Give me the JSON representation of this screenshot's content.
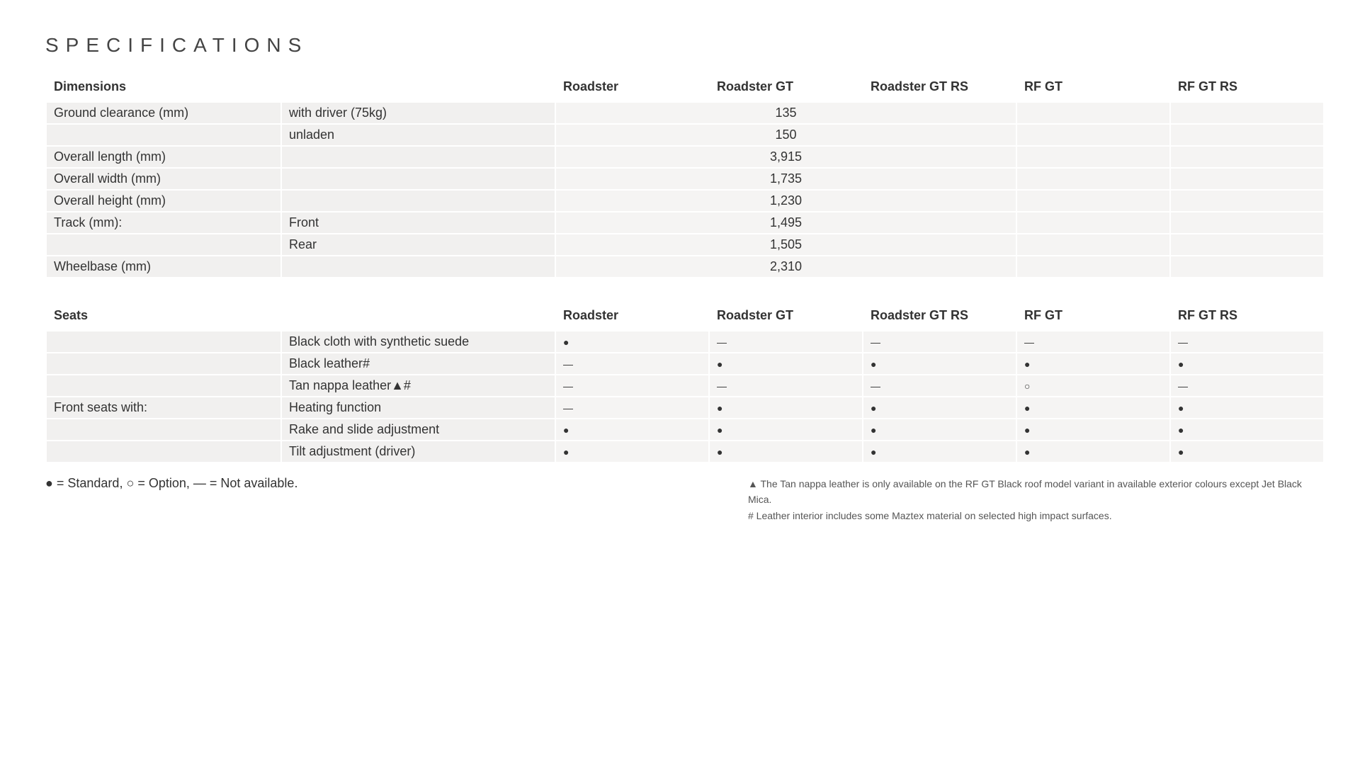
{
  "title": "SPECIFICATIONS",
  "columns": [
    "Roadster",
    "Roadster GT",
    "Roadster GT RS",
    "RF GT",
    "RF GT RS"
  ],
  "symbols": {
    "standard": "●",
    "option": "○",
    "na": "—"
  },
  "legend": "● = Standard,  ○ = Option, — = Not available.",
  "footnotes": [
    "▲ The Tan nappa leather is only available on the RF GT Black roof model variant in available exterior colours except Jet Black Mica.",
    "# Leather interior includes some Maztex material on selected high impact surfaces."
  ],
  "colors": {
    "row_bg_label": "#f1f0ef",
    "row_bg_value": "#f5f4f3",
    "page_bg": "#ffffff",
    "text": "#333333",
    "title": "#444444"
  },
  "dimensions_section": {
    "header": "Dimensions",
    "rows": [
      {
        "label": "Ground clearance (mm)",
        "sub": "with driver (75kg)",
        "span3": "135",
        "rfgt": "",
        "rfgtrs": ""
      },
      {
        "label": "",
        "sub": "unladen",
        "span3": "150",
        "rfgt": "",
        "rfgtrs": ""
      },
      {
        "label": "Overall length (mm)",
        "sub": "",
        "span3": "3,915",
        "rfgt": "",
        "rfgtrs": ""
      },
      {
        "label": "Overall width (mm)",
        "sub": "",
        "span3": "1,735",
        "rfgt": "",
        "rfgtrs": ""
      },
      {
        "label": "Overall height (mm)",
        "sub": "",
        "span3": "1,230",
        "rfgt": "",
        "rfgtrs": ""
      },
      {
        "label": "Track (mm):",
        "sub": "Front",
        "span3": "1,495",
        "rfgt": "",
        "rfgtrs": ""
      },
      {
        "label": "",
        "sub": "Rear",
        "span3": "1,505",
        "rfgt": "",
        "rfgtrs": ""
      },
      {
        "label": "Wheelbase (mm)",
        "sub": "",
        "span3": "2,310",
        "rfgt": "",
        "rfgtrs": ""
      }
    ]
  },
  "seats_section": {
    "header": "Seats",
    "rows": [
      {
        "label": "",
        "sub": "Black cloth with synthetic suede",
        "v": [
          "standard",
          "na",
          "na",
          "na",
          "na"
        ]
      },
      {
        "label": "",
        "sub": "Black leather#",
        "v": [
          "na",
          "standard",
          "standard",
          "standard",
          "standard"
        ]
      },
      {
        "label": "",
        "sub": "Tan nappa leather▲#",
        "v": [
          "na",
          "na",
          "na",
          "option",
          "na"
        ]
      },
      {
        "label": "Front seats with:",
        "sub": "Heating function",
        "v": [
          "na",
          "standard",
          "standard",
          "standard",
          "standard"
        ]
      },
      {
        "label": "",
        "sub": "Rake and slide adjustment",
        "v": [
          "standard",
          "standard",
          "standard",
          "standard",
          "standard"
        ]
      },
      {
        "label": "",
        "sub": "Tilt adjustment (driver)",
        "v": [
          "standard",
          "standard",
          "standard",
          "standard",
          "standard"
        ]
      }
    ]
  }
}
